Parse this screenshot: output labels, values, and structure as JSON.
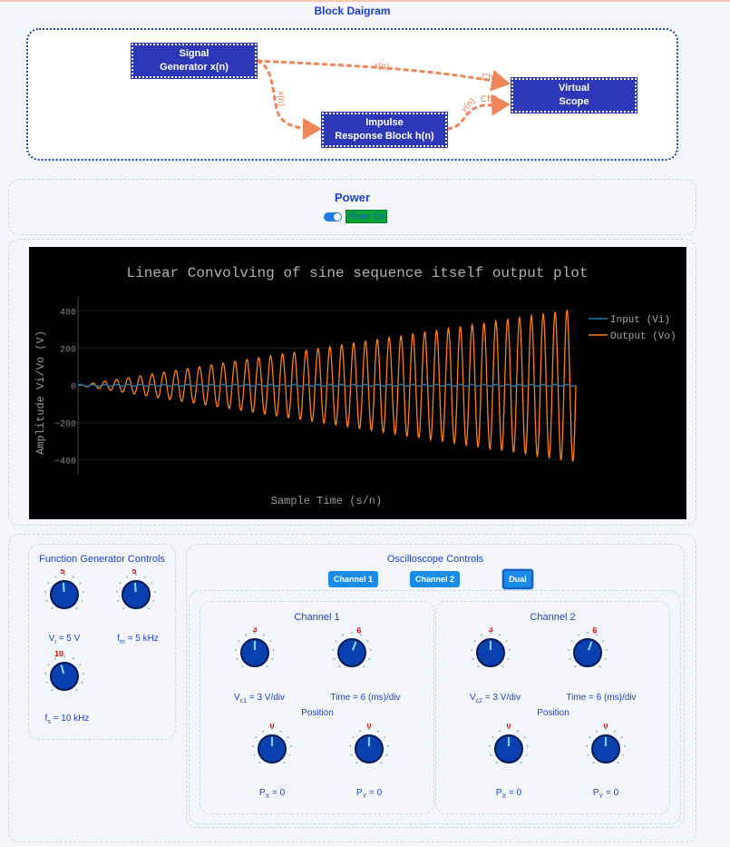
{
  "block_diagram": {
    "title": "Block Daigram",
    "signal_generator": [
      "Signal",
      "Generator x(n)"
    ],
    "virtual_scope": [
      "Virtual",
      "Scope"
    ],
    "impulse_block": [
      "Impulse",
      "Response Block h(n)"
    ],
    "edge_xn_top": "x(n)",
    "edge_xn_side": "x(n)",
    "edge_ch1": "Ch1",
    "edge_yn": "y(n)",
    "edge_ch2": "Ch2",
    "edge_color": "#f0855a"
  },
  "power": {
    "title": "Power",
    "toggle_label": "Power On",
    "toggle_on": true
  },
  "chart_data": {
    "type": "line",
    "title": "Linear Convolving of sine sequence itself output plot",
    "xlabel": "Sample Time (s/n)",
    "ylabel": "Amplitude Vi/Vo (V)",
    "ylim": [
      -450,
      450
    ],
    "yticks": [
      "400",
      "200",
      "0",
      "−200",
      "−400"
    ],
    "ytick_values": [
      400,
      200,
      0,
      -200,
      -400
    ],
    "legend_position": "top-right",
    "series": [
      {
        "name": "Input (Vi)",
        "color": "#1f77b4",
        "description": "flat near 0 (amplitude 5)"
      },
      {
        "name": "Output (Vo)",
        "color": "#ff7f0e",
        "description": "sinusoid with linearly growing amplitude from ~0 to ~410 over 42 cycles"
      }
    ]
  },
  "function_generator": {
    "title": "Function Generator Controls",
    "vi": {
      "label_pre": "V",
      "sub": "i",
      "label_post": " = 5 V",
      "value": "5"
    },
    "fm": {
      "label_pre": "f",
      "sub": "m",
      "label_post": " = 5 kHz",
      "value": "5"
    },
    "fs": {
      "label_pre": "f",
      "sub": "s",
      "label_post": " = 10 kHz",
      "value": "10"
    }
  },
  "oscilloscope": {
    "title": "Oscilloscope Controls",
    "buttons": [
      "Channel 1",
      "Channel 2",
      "Dual"
    ],
    "active_button": "Dual",
    "channel1": {
      "title": "Channel 1",
      "volt": {
        "label_pre": "V",
        "sub": "c1",
        "label_post": " = 3 V/div",
        "value": "3"
      },
      "time": {
        "label": "Time = 6 (ms)/div",
        "value": "6"
      },
      "position_title": "Position",
      "px": {
        "label_pre": "P",
        "sub": "X",
        "label_post": " = 0",
        "value": "0"
      },
      "py": {
        "label_pre": "P",
        "sub": "Y",
        "label_post": " = 0",
        "value": "0"
      }
    },
    "channel2": {
      "title": "Channel 2",
      "volt": {
        "label_pre": "V",
        "sub": "c2",
        "label_post": " = 3 V/div",
        "value": "3"
      },
      "time": {
        "label": "Time = 6 (ms)/div",
        "value": "6"
      },
      "position_title": "Position",
      "px": {
        "label_pre": "P",
        "sub": "X",
        "label_post": " = 0",
        "value": "0"
      },
      "py": {
        "label_pre": "P",
        "sub": "Y",
        "label_post": " = 0",
        "value": "0"
      }
    }
  },
  "colors": {
    "accent": "#1a3fd0",
    "block": "#2d38b8",
    "knob": "#0a3fb0",
    "knob_value": "#d01010",
    "button": "#1a8be8"
  }
}
